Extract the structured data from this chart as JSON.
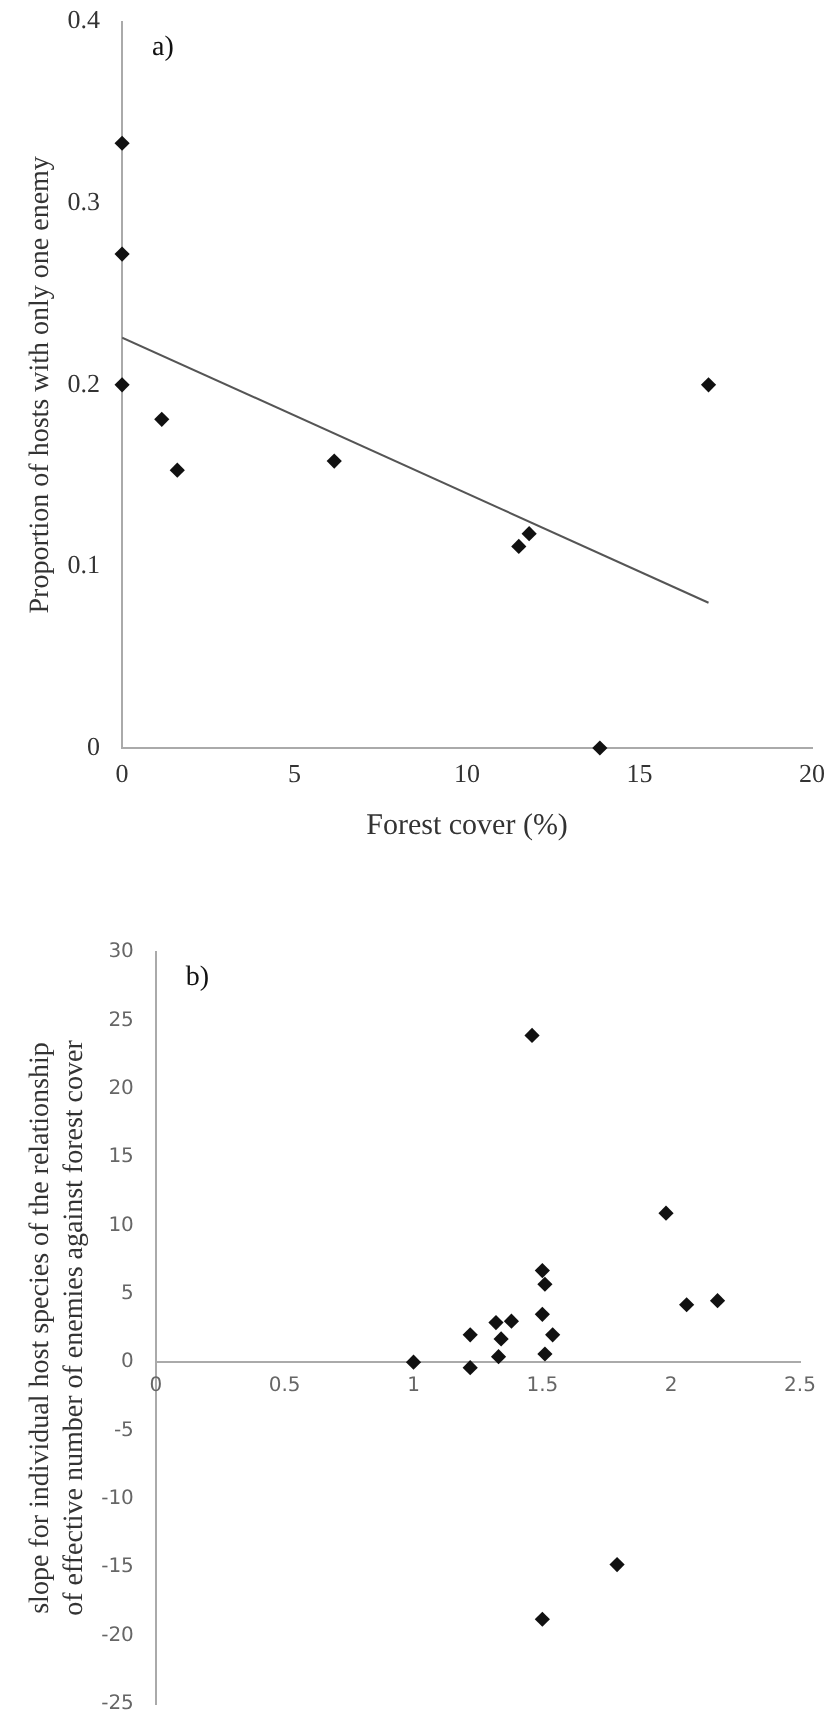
{
  "chart_data": [
    {
      "type": "scatter",
      "xlabel": "Forest cover (%)",
      "ylabel": "Proportion of hosts with only one enemy",
      "annotations": [
        "a)"
      ],
      "marker": "diamond",
      "grid": false,
      "xlim": [
        0,
        20
      ],
      "xticks": [
        0,
        5,
        10,
        15,
        20
      ],
      "ylim": [
        0,
        0.4
      ],
      "yticks": [
        0,
        0.1,
        0.2,
        0.3,
        0.4
      ],
      "series": [
        {
          "color": "#111111",
          "x": [
            0,
            0,
            0,
            1.15,
            1.6,
            6.15,
            11.5,
            11.8,
            13.85,
            17
          ],
          "values": [
            0.333,
            0.272,
            0.2,
            0.181,
            0.153,
            0.158,
            0.111,
            0.118,
            0,
            0.2
          ]
        },
        {
          "type": "line",
          "marker": "none",
          "color": "#555555",
          "x": [
            0,
            17
          ],
          "values": [
            0.226,
            0.08
          ]
        }
      ]
    },
    {
      "type": "scatter",
      "ylabel": "slope for individual host species of the relationship of effective number of enemies against forest cover",
      "annotations": [
        "b)"
      ],
      "marker": "diamond",
      "grid": false,
      "xlim": [
        0,
        2.5
      ],
      "xticks": [
        0,
        0.5,
        1,
        1.5,
        2,
        2.5
      ],
      "ylim": [
        -25,
        30
      ],
      "yticks": [
        -25,
        -20,
        -15,
        -10,
        -5,
        0,
        5,
        10,
        15,
        20,
        25,
        30
      ],
      "series": [
        {
          "color": "#111111",
          "x": [
            1.0,
            1.22,
            1.22,
            1.32,
            1.34,
            1.33,
            1.38,
            1.46,
            1.5,
            1.51,
            1.5,
            1.54,
            1.51,
            1.98,
            2.06,
            2.18,
            1.79,
            1.5
          ],
          "values": [
            0,
            2.0,
            -0.4,
            2.9,
            1.7,
            0.4,
            3.0,
            23.9,
            6.7,
            5.7,
            3.5,
            2.0,
            0.6,
            10.9,
            4.2,
            4.5,
            -14.8,
            -18.8
          ]
        }
      ]
    }
  ]
}
